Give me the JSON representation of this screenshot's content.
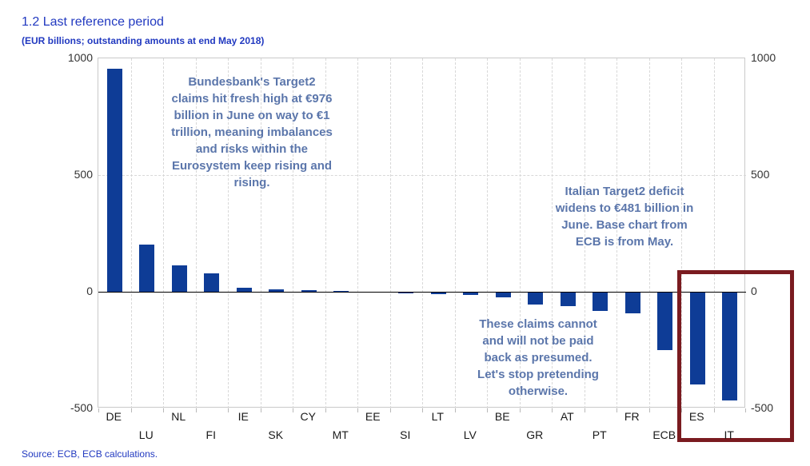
{
  "header": {
    "title": "1.2 Last reference period",
    "subtitle": "(EUR billions; outstanding amounts at end May 2018)"
  },
  "source": "Source: ECB, ECB calculations.",
  "annotations": {
    "bundesbank": "Bundesbank's Target2\nclaims hit fresh high at €976\nbillion in June on way to €1\ntrillion, meaning imbalances\nand risks within the\nEurosystem keep rising and\nrising.",
    "italy": "Italian Target2 deficit\nwidens to €481 billion in\nJune.  Base chart from\nECB is from May.",
    "claims": "These claims cannot\nand will not be paid\nback as presumed.\nLet's stop pretending\notherwise."
  },
  "chart_data": {
    "type": "bar",
    "title": "1.2 Last reference period",
    "subtitle": "(EUR billions; outstanding amounts at end May 2018)",
    "categories": [
      "DE",
      "LU",
      "NL",
      "FI",
      "IE",
      "SK",
      "CY",
      "MT",
      "EE",
      "SI",
      "LT",
      "LV",
      "BE",
      "GR",
      "AT",
      "PT",
      "FR",
      "ECB",
      "ES",
      "IT"
    ],
    "values": [
      956,
      202,
      114,
      78,
      16,
      10,
      7,
      2,
      1,
      -7,
      -10,
      -15,
      -24,
      -56,
      -60,
      -83,
      -92,
      -251,
      -398,
      -465
    ],
    "xlabel": "",
    "ylabel": "EUR billions",
    "ylim": [
      -500,
      1000
    ],
    "yticks": [
      1000,
      500,
      0,
      -500
    ],
    "grid": "vertical dashed per category boundary; horizontal dashed at 500; solid black zero line",
    "legend_position": "none",
    "bar_color": "#0e3c96",
    "highlight_box": {
      "categories": [
        "ES",
        "IT"
      ],
      "border_color": "#7a1b20"
    }
  },
  "colors": {
    "title_blue": "#2139c0",
    "annotation_blue": "#5b76ab",
    "bar_navy": "#0e3c96",
    "box_maroon": "#7a1b20",
    "gridline": "#d8d8d8",
    "axis_text": "#333333"
  }
}
